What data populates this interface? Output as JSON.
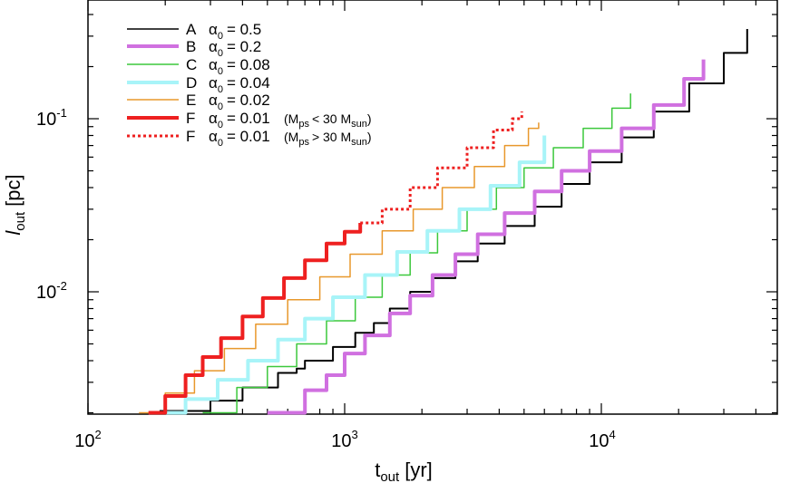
{
  "chart_data": {
    "type": "line",
    "xscale": "log",
    "yscale": "log",
    "xlim": [
      100,
      50000
    ],
    "ylim": [
      0.002,
      0.5
    ],
    "xlabel": {
      "main": "t",
      "sub": "out",
      "unit": "[yr]"
    },
    "ylabel": {
      "main": "l",
      "sub": "out",
      "unit": "[pc]"
    },
    "xticks": [
      {
        "value": 100,
        "base": "10",
        "exp": "2"
      },
      {
        "value": 1000,
        "base": "10",
        "exp": "3"
      },
      {
        "value": 10000,
        "base": "10",
        "exp": "4"
      }
    ],
    "yticks": [
      {
        "value": 0.01,
        "base": "10",
        "exp": "-2"
      },
      {
        "value": 0.1,
        "base": "10",
        "exp": "-1"
      }
    ],
    "series": [
      {
        "name": "A",
        "alpha_sym": "α",
        "alpha_sub": "0",
        "alpha_val": "= 0.5",
        "color": "#000000",
        "style": "solid",
        "width": 2,
        "points": [
          [
            190,
            0.00205
          ],
          [
            300,
            0.00235
          ],
          [
            400,
            0.0028
          ],
          [
            550,
            0.0034
          ],
          [
            650,
            0.0036
          ],
          [
            700,
            0.004
          ],
          [
            900,
            0.0048
          ],
          [
            1100,
            0.0058
          ],
          [
            1300,
            0.0066
          ],
          [
            1500,
            0.008
          ],
          [
            1800,
            0.01
          ],
          [
            2200,
            0.012
          ],
          [
            2700,
            0.015
          ],
          [
            3300,
            0.019
          ],
          [
            4200,
            0.024
          ],
          [
            5500,
            0.031
          ],
          [
            7000,
            0.042
          ],
          [
            9000,
            0.056
          ],
          [
            12000,
            0.078
          ],
          [
            16000,
            0.11
          ],
          [
            22000,
            0.16
          ],
          [
            30000,
            0.24
          ],
          [
            37000,
            0.33
          ]
        ]
      },
      {
        "name": "B",
        "alpha_sym": "α",
        "alpha_sub": "0",
        "alpha_val": "= 0.2",
        "color": "#d070e0",
        "style": "solid",
        "width": 4,
        "points": [
          [
            500,
            0.002
          ],
          [
            700,
            0.0027
          ],
          [
            850,
            0.0033
          ],
          [
            1000,
            0.0044
          ],
          [
            1200,
            0.0056
          ],
          [
            1500,
            0.0075
          ],
          [
            1800,
            0.0095
          ],
          [
            2200,
            0.0125
          ],
          [
            2700,
            0.0165
          ],
          [
            3300,
            0.0215
          ],
          [
            4200,
            0.0285
          ],
          [
            5500,
            0.038
          ],
          [
            7000,
            0.05
          ],
          [
            9000,
            0.065
          ],
          [
            12000,
            0.088
          ],
          [
            16000,
            0.12
          ],
          [
            21000,
            0.17
          ],
          [
            25000,
            0.22
          ]
        ]
      },
      {
        "name": "C",
        "alpha_sym": "α",
        "alpha_sub": "0",
        "alpha_val": "= 0.08",
        "color": "#3cc83c",
        "style": "solid",
        "width": 1.5,
        "points": [
          [
            280,
            0.002
          ],
          [
            380,
            0.0028
          ],
          [
            500,
            0.0037
          ],
          [
            650,
            0.005
          ],
          [
            850,
            0.0068
          ],
          [
            1100,
            0.0093
          ],
          [
            1400,
            0.0125
          ],
          [
            1800,
            0.0168
          ],
          [
            2300,
            0.0225
          ],
          [
            3000,
            0.03
          ],
          [
            3900,
            0.04
          ],
          [
            5000,
            0.052
          ],
          [
            6500,
            0.068
          ],
          [
            8500,
            0.088
          ],
          [
            11000,
            0.115
          ],
          [
            13000,
            0.14
          ]
        ]
      },
      {
        "name": "D",
        "alpha_sym": "α",
        "alpha_sub": "0",
        "alpha_val": "= 0.04",
        "color": "#a8f4f8",
        "style": "solid",
        "width": 4,
        "points": [
          [
            185,
            0.002
          ],
          [
            240,
            0.0024
          ],
          [
            320,
            0.0031
          ],
          [
            420,
            0.004
          ],
          [
            550,
            0.0053
          ],
          [
            700,
            0.007
          ],
          [
            900,
            0.0093
          ],
          [
            1200,
            0.0125
          ],
          [
            1600,
            0.017
          ],
          [
            2100,
            0.0225
          ],
          [
            2800,
            0.03
          ],
          [
            3700,
            0.041
          ],
          [
            4800,
            0.056
          ],
          [
            6000,
            0.08
          ]
        ]
      },
      {
        "name": "E",
        "alpha_sym": "α",
        "alpha_sub": "0",
        "alpha_val": "= 0.02",
        "color": "#e8982c",
        "style": "solid",
        "width": 1.5,
        "points": [
          [
            158,
            0.002
          ],
          [
            200,
            0.0026
          ],
          [
            260,
            0.0035
          ],
          [
            340,
            0.0047
          ],
          [
            450,
            0.0065
          ],
          [
            600,
            0.009
          ],
          [
            800,
            0.0122
          ],
          [
            1050,
            0.0165
          ],
          [
            1400,
            0.0225
          ],
          [
            1850,
            0.03
          ],
          [
            2400,
            0.04
          ],
          [
            3200,
            0.053
          ],
          [
            4200,
            0.07
          ],
          [
            5200,
            0.088
          ],
          [
            5700,
            0.095
          ]
        ]
      },
      {
        "name": "F",
        "alpha_sym": "α",
        "alpha_sub": "0",
        "alpha_val": "= 0.01",
        "color": "#ee2020",
        "style": "solid",
        "width": 4,
        "note": "(M",
        "note_sub": "ps",
        "note_rel": "< 30 M",
        "note_sub2": "sun",
        "note_end": ")",
        "points": [
          [
            172,
            0.002
          ],
          [
            200,
            0.0025
          ],
          [
            240,
            0.0033
          ],
          [
            280,
            0.0042
          ],
          [
            330,
            0.0054
          ],
          [
            400,
            0.0072
          ],
          [
            480,
            0.0092
          ],
          [
            580,
            0.012
          ],
          [
            700,
            0.0152
          ],
          [
            850,
            0.019
          ],
          [
            1000,
            0.0222
          ],
          [
            1150,
            0.025
          ]
        ]
      },
      {
        "name": "F",
        "alpha_sym": "α",
        "alpha_sub": "0",
        "alpha_val": "= 0.01",
        "color": "#ee2020",
        "style": "dotted",
        "width": 3,
        "note": "(M",
        "note_sub": "ps",
        "note_rel": "> 30 M",
        "note_sub2": "sun",
        "note_end": ")",
        "points": [
          [
            1150,
            0.025
          ],
          [
            1400,
            0.03
          ],
          [
            1800,
            0.04
          ],
          [
            2300,
            0.052
          ],
          [
            3000,
            0.068
          ],
          [
            3800,
            0.086
          ],
          [
            4500,
            0.1
          ],
          [
            4900,
            0.11
          ]
        ]
      }
    ]
  }
}
